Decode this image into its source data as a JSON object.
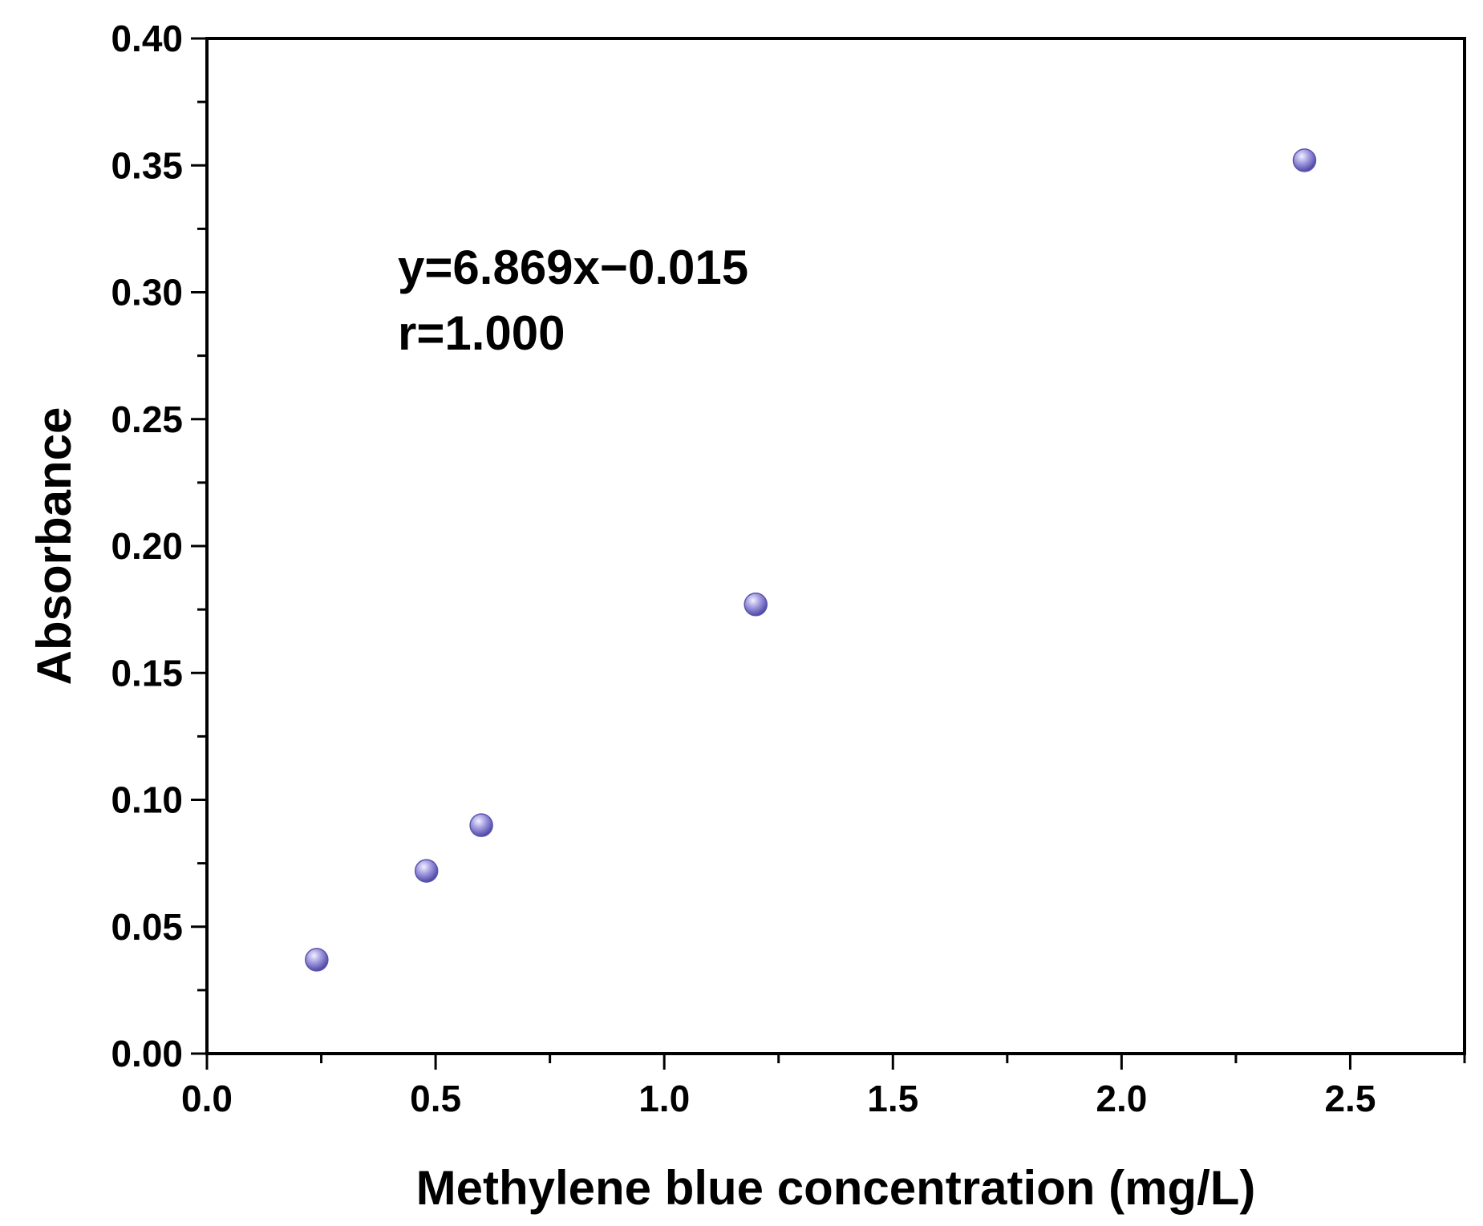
{
  "chart_data": {
    "type": "scatter",
    "title": "",
    "xlabel": "Methylene blue concentration (mg/L)",
    "ylabel": "Absorbance",
    "xlim": [
      0.0,
      2.75
    ],
    "ylim": [
      0.0,
      0.4
    ],
    "x_ticks": [
      "0.0",
      "0.5",
      "1.0",
      "1.5",
      "2.0",
      "2.5"
    ],
    "y_ticks": [
      "0.00",
      "0.05",
      "0.10",
      "0.15",
      "0.20",
      "0.25",
      "0.30",
      "0.35",
      "0.40"
    ],
    "grid": false,
    "legend": "none",
    "series": [
      {
        "color": "#6e66c0",
        "marker": "sphere",
        "line": "linear fit",
        "x": [
          0.24,
          0.48,
          0.6,
          1.2,
          2.4
        ],
        "y": [
          0.037,
          0.072,
          0.09,
          0.177,
          0.352
        ]
      }
    ],
    "fit": {
      "slope": 6.869,
      "intercept": -0.015
    },
    "annotations": [
      "y=6.869x−0.015",
      "r=1.000"
    ]
  }
}
